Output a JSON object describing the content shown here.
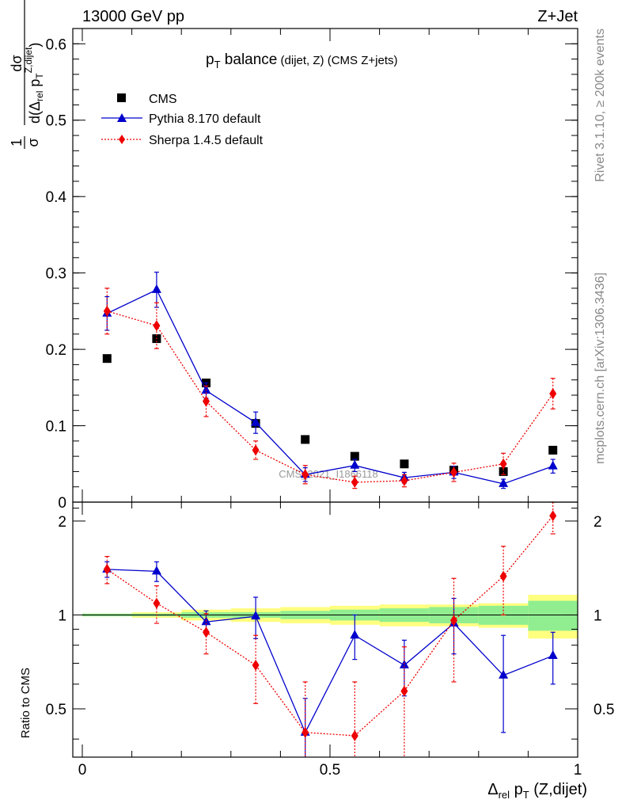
{
  "header": {
    "left": "13000 GeV pp",
    "right": "Z+Jet"
  },
  "side_labels": {
    "rivet": "Rivet 3.1.10, ≥ 200k events",
    "mcplots": "mcplots.cern.ch [arXiv:1306.3436]"
  },
  "title": {
    "pt_main": "p",
    "pt_sub": "T",
    "main": " balance",
    "small": " (dijet, Z)",
    "tail": " (CMS Z+jets)"
  },
  "watermark": "CMS_2021_I1866118",
  "ylabel_main": {
    "frac_num": "1",
    "frac_den": "σ",
    "d_num": "dσ",
    "d_den_prefix": "d(Δ",
    "d_den_sub": "rel",
    "d_den_p": " p",
    "d_den_psub": "T",
    "d_den_psup": "Z,dijet",
    "d_den_close": ")"
  },
  "ylabel_ratio": "Ratio to CMS",
  "xlabel": {
    "delta": "Δ",
    "rel": "rel",
    "p": " p",
    "T": "T",
    "rest": " (Z,dijet)"
  },
  "legend": [
    {
      "name": "CMS",
      "color": "#000000",
      "marker": "square",
      "line": "none"
    },
    {
      "name": "Pythia 8.170 default",
      "color": "#0000cc",
      "marker": "triangle",
      "line": "solid"
    },
    {
      "name": "Sherpa 1.4.5 default",
      "color": "#ee0000",
      "marker": "diamond",
      "line": "dotted"
    }
  ],
  "chart_data": {
    "type": "line",
    "x": [
      0.05,
      0.15,
      0.25,
      0.35,
      0.45,
      0.55,
      0.65,
      0.75,
      0.85,
      0.95
    ],
    "xlim": [
      0,
      1
    ],
    "x_ticks": [
      "0",
      "0.5",
      "1"
    ],
    "main_panel": {
      "ylim": [
        0,
        0.62
      ],
      "y_ticks": [
        "0",
        "0.1",
        "0.2",
        "0.3",
        "0.4",
        "0.5",
        "0.6"
      ],
      "series": [
        {
          "name": "CMS",
          "values": [
            0.188,
            0.214,
            0.156,
            0.103,
            0.082,
            0.06,
            0.05,
            0.042,
            0.04,
            0.068
          ],
          "err": [
            0.001,
            0.002,
            0.002,
            0.002,
            0.002,
            0.001,
            0.001,
            0.001,
            0.001,
            0.002
          ]
        },
        {
          "name": "Pythia 8.170 default",
          "values": [
            0.247,
            0.278,
            0.146,
            0.104,
            0.036,
            0.048,
            0.032,
            0.039,
            0.024,
            0.047
          ],
          "err": [
            0.022,
            0.023,
            0.01,
            0.014,
            0.009,
            0.008,
            0.007,
            0.008,
            0.006,
            0.009
          ]
        },
        {
          "name": "Sherpa 1.4.5 default",
          "values": [
            0.25,
            0.231,
            0.132,
            0.068,
            0.036,
            0.026,
            0.028,
            0.039,
            0.05,
            0.142
          ],
          "err": [
            0.03,
            0.03,
            0.02,
            0.012,
            0.012,
            0.008,
            0.008,
            0.012,
            0.014,
            0.02
          ]
        }
      ]
    },
    "ratio_panel": {
      "ylim": [
        0.35,
        2.3
      ],
      "scale": "log",
      "y_ticks": [
        "0.5",
        "1",
        "2"
      ],
      "series": [
        {
          "name": "Pythia 8.170 default",
          "values": [
            1.4,
            1.38,
            0.95,
            0.99,
            0.42,
            0.86,
            0.69,
            0.94,
            0.64,
            0.74
          ],
          "err": [
            0.08,
            0.1,
            0.08,
            0.15,
            0.12,
            0.14,
            0.14,
            0.19,
            0.22,
            0.14
          ]
        },
        {
          "name": "Sherpa 1.4.5 default",
          "values": [
            1.4,
            1.09,
            0.88,
            0.69,
            0.42,
            0.41,
            0.57,
            0.96,
            1.33,
            2.08
          ],
          "err": [
            0.14,
            0.15,
            0.13,
            0.17,
            0.19,
            0.2,
            0.22,
            0.35,
            0.33,
            0.26
          ]
        }
      ],
      "bands": {
        "stat_color": "#90ee90",
        "total_color": "#ffff7f",
        "stat": [
          0.01,
          0.01,
          0.02,
          0.02,
          0.03,
          0.04,
          0.05,
          0.06,
          0.07,
          0.11
        ],
        "total": [
          0.01,
          0.02,
          0.04,
          0.05,
          0.06,
          0.07,
          0.08,
          0.08,
          0.09,
          0.16
        ]
      }
    }
  }
}
